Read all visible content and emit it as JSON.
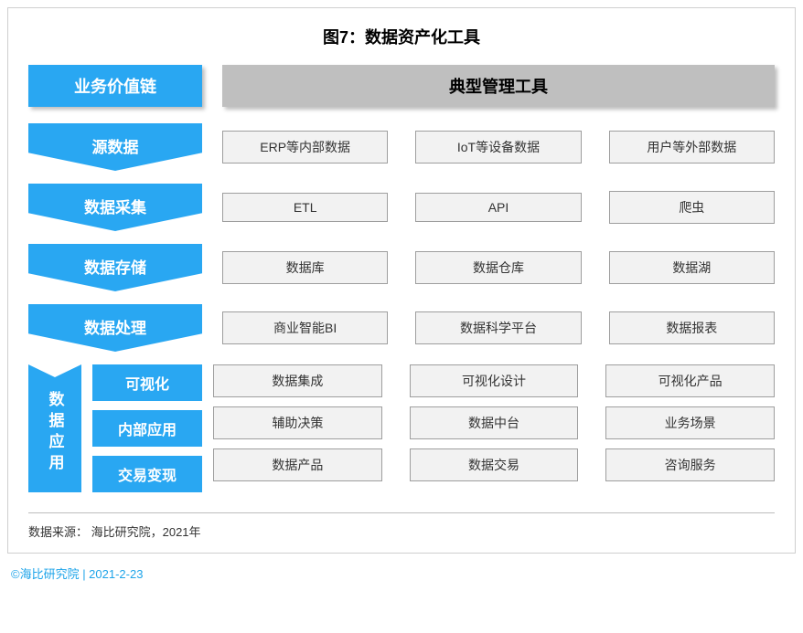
{
  "title": "图7：数据资产化工具",
  "colors": {
    "accent": "#29a7f2",
    "header_right_bg": "#bfbfbf",
    "tool_bg": "#f2f2f2",
    "tool_border": "#9e9e9e",
    "frame_border": "#cfcfcf",
    "credit": "#1ea4e9",
    "black": "#000000",
    "white": "#ffffff"
  },
  "header": {
    "left": "业务价值链",
    "right": "典型管理工具"
  },
  "rows": [
    {
      "stage": "源数据",
      "tools": [
        "ERP等内部数据",
        "IoT等设备数据",
        "用户等外部数据"
      ]
    },
    {
      "stage": "数据采集",
      "tools": [
        "ETL",
        "API",
        "爬虫"
      ]
    },
    {
      "stage": "数据存储",
      "tools": [
        "数据库",
        "数据仓库",
        "数据湖"
      ]
    },
    {
      "stage": "数据处理",
      "tools": [
        "商业智能BI",
        "数据科学平台",
        "数据报表"
      ]
    }
  ],
  "group": {
    "label": "数据应用",
    "subs": [
      {
        "name": "可视化",
        "tools": [
          "数据集成",
          "可视化设计",
          "可视化产品"
        ]
      },
      {
        "name": "内部应用",
        "tools": [
          "辅助决策",
          "数据中台",
          "业务场景"
        ]
      },
      {
        "name": "交易变现",
        "tools": [
          "数据产品",
          "数据交易",
          "咨询服务"
        ]
      }
    ]
  },
  "source": "数据来源： 海比研究院，2021年",
  "credit": "©海比研究院  |  2021-2-23"
}
